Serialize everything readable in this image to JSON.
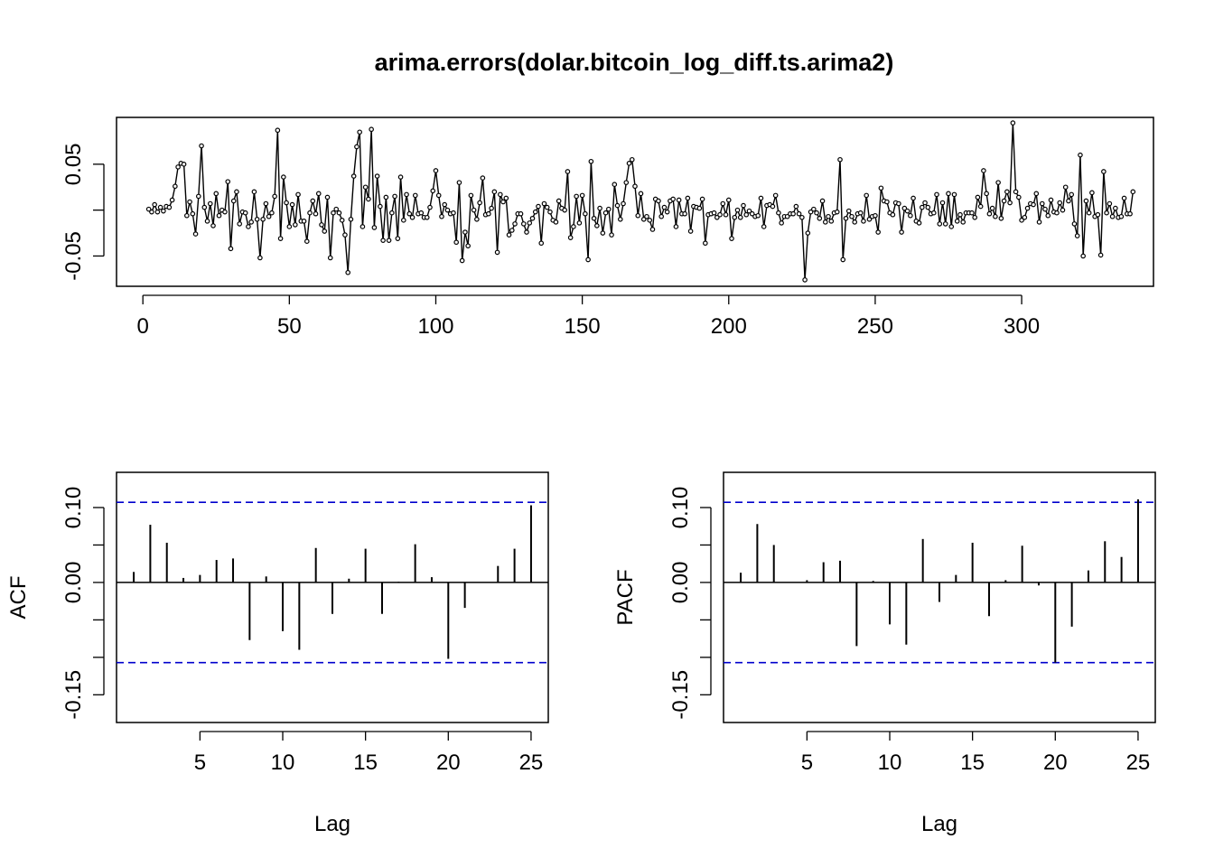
{
  "title": "arima.errors(dolar.bitcoin_log_diff.ts.arima2)",
  "chart_data": [
    {
      "type": "line",
      "panel": "time-series",
      "title": "arima.errors(dolar.bitcoin_log_diff.ts.arima2)",
      "xlabel": "",
      "ylabel": "",
      "xlim": [
        -9,
        345
      ],
      "ylim": [
        -0.083,
        0.101
      ],
      "xticks": [
        0,
        50,
        100,
        150,
        200,
        250,
        300
      ],
      "yticks": [
        -0.05,
        0.0,
        0.05
      ],
      "ytick_labels": [
        "-0.05",
        "",
        "0.05"
      ],
      "markers": "open circles",
      "x_start": 2,
      "values": [
        0.001,
        -0.002,
        0.006,
        -0.002,
        0.003,
        -0.001,
        0.004,
        0.003,
        0.011,
        0.026,
        0.047,
        0.051,
        0.05,
        -0.006,
        0.009,
        -0.004,
        -0.026,
        0.015,
        0.07,
        0.003,
        -0.012,
        0.007,
        -0.017,
        0.018,
        -0.006,
        0.0,
        -0.002,
        0.031,
        -0.042,
        0.01,
        0.02,
        -0.015,
        -0.002,
        -0.003,
        -0.018,
        -0.013,
        0.02,
        -0.01,
        -0.052,
        -0.01,
        0.007,
        -0.007,
        -0.003,
        0.015,
        0.087,
        -0.031,
        0.036,
        0.008,
        -0.018,
        0.006,
        -0.016,
        0.017,
        -0.012,
        -0.012,
        -0.034,
        -0.003,
        0.01,
        -0.004,
        0.018,
        -0.016,
        -0.023,
        0.014,
        -0.052,
        -0.003,
        0.001,
        -0.003,
        -0.011,
        -0.027,
        -0.068,
        -0.01,
        0.037,
        0.069,
        0.085,
        -0.018,
        0.025,
        0.012,
        0.088,
        -0.019,
        0.037,
        0.004,
        -0.033,
        0.014,
        -0.033,
        -0.003,
        0.015,
        -0.031,
        0.036,
        -0.011,
        0.017,
        -0.004,
        -0.008,
        0.016,
        -0.004,
        -0.003,
        -0.008,
        -0.008,
        0.003,
        0.021,
        0.043,
        0.016,
        -0.007,
        0.006,
        0.0,
        -0.004,
        -0.003,
        -0.035,
        0.03,
        -0.055,
        -0.024,
        -0.039,
        0.016,
        0.0,
        -0.01,
        0.008,
        0.035,
        -0.005,
        -0.004,
        0.002,
        0.02,
        -0.046,
        0.017,
        0.009,
        0.013,
        -0.027,
        -0.022,
        -0.015,
        -0.004,
        -0.004,
        -0.015,
        -0.024,
        -0.014,
        -0.009,
        -0.002,
        0.004,
        -0.036,
        0.007,
        0.003,
        -0.002,
        -0.011,
        -0.013,
        0.01,
        0.002,
        0.0,
        0.042,
        -0.03,
        -0.018,
        0.015,
        -0.014,
        0.016,
        -0.004,
        -0.054,
        0.053,
        -0.009,
        -0.017,
        0.002,
        -0.025,
        -0.003,
        0.001,
        -0.027,
        0.028,
        0.005,
        -0.01,
        0.007,
        0.03,
        0.051,
        0.055,
        0.026,
        -0.006,
        0.018,
        -0.01,
        -0.007,
        -0.011,
        -0.021,
        0.012,
        0.01,
        -0.007,
        0.003,
        -0.002,
        0.01,
        0.012,
        -0.018,
        0.011,
        -0.004,
        -0.004,
        0.013,
        -0.023,
        0.004,
        0.003,
        0.002,
        0.012,
        -0.036,
        -0.005,
        -0.004,
        -0.003,
        -0.008,
        -0.005,
        0.007,
        -0.005,
        0.011,
        -0.031,
        -0.008,
        0.0,
        -0.008,
        0.005,
        -0.005,
        -0.001,
        -0.004,
        -0.007,
        -0.006,
        0.013,
        -0.018,
        0.005,
        0.006,
        0.004,
        0.016,
        -0.003,
        -0.014,
        -0.007,
        -0.007,
        -0.004,
        -0.004,
        0.004,
        -0.004,
        -0.008,
        -0.076,
        -0.025,
        -0.002,
        0.001,
        -0.003,
        -0.009,
        0.01,
        -0.013,
        -0.007,
        -0.012,
        -0.003,
        -0.002,
        0.055,
        -0.054,
        -0.009,
        -0.001,
        -0.007,
        -0.013,
        -0.004,
        -0.003,
        -0.012,
        0.016,
        -0.01,
        -0.007,
        -0.006,
        -0.024,
        0.024,
        0.01,
        0.009,
        -0.003,
        -0.005,
        0.008,
        0.007,
        -0.024,
        0.002,
        -0.001,
        -0.006,
        0.013,
        -0.012,
        -0.014,
        0.003,
        0.008,
        0.003,
        -0.004,
        -0.003,
        0.017,
        -0.015,
        0.008,
        -0.015,
        0.018,
        -0.018,
        0.017,
        -0.012,
        -0.005,
        -0.013,
        -0.003,
        -0.003,
        -0.003,
        -0.008,
        0.014,
        0.004,
        0.043,
        0.018,
        -0.004,
        0.002,
        -0.007,
        0.03,
        -0.009,
        0.01,
        0.02,
        0.008,
        0.095,
        0.02,
        0.014,
        -0.011,
        -0.008,
        0.002,
        0.007,
        0.006,
        0.018,
        -0.013,
        0.007,
        0.001,
        -0.006,
        0.011,
        -0.002,
        -0.003,
        0.008,
        0.0,
        0.025,
        0.01,
        0.017,
        -0.015,
        -0.028,
        0.06,
        -0.05,
        0.01,
        -0.003,
        0.019,
        -0.007,
        -0.005,
        -0.049,
        0.042,
        -0.003,
        0.007,
        -0.007,
        0.002,
        -0.008,
        -0.007,
        0.013,
        -0.004,
        -0.004,
        0.02
      ]
    },
    {
      "type": "bar",
      "panel": "acf",
      "title": "",
      "xlabel": "Lag",
      "ylabel": "ACF",
      "xlim": [
        -0.04,
        26.04
      ],
      "ylim": [
        -0.187,
        0.147
      ],
      "xticks": [
        5,
        10,
        15,
        20,
        25
      ],
      "yticks": [
        -0.15,
        -0.1,
        -0.05,
        0.0,
        0.05,
        0.1
      ],
      "ytick_labels": [
        "-0.15",
        "",
        "",
        "0.00",
        "",
        "0.10"
      ],
      "ci": 0.107,
      "ci_color": "#0000CD",
      "x": [
        1,
        2,
        3,
        4,
        5,
        6,
        7,
        8,
        9,
        10,
        11,
        12,
        13,
        14,
        15,
        16,
        17,
        18,
        19,
        20,
        21,
        22,
        23,
        24,
        25
      ],
      "values": [
        0.014,
        0.077,
        0.053,
        0.006,
        0.01,
        0.03,
        0.032,
        -0.077,
        0.008,
        -0.065,
        -0.09,
        0.046,
        -0.042,
        0.005,
        0.045,
        -0.042,
        0.001,
        0.051,
        0.007,
        -0.102,
        -0.034,
        0.0,
        0.022,
        0.045,
        0.103
      ]
    },
    {
      "type": "bar",
      "panel": "pacf",
      "title": "",
      "xlabel": "Lag",
      "ylabel": "PACF",
      "xlim": [
        -0.04,
        26.04
      ],
      "ylim": [
        -0.187,
        0.147
      ],
      "xticks": [
        5,
        10,
        15,
        20,
        25
      ],
      "yticks": [
        -0.15,
        -0.1,
        -0.05,
        0.0,
        0.05,
        0.1
      ],
      "ytick_labels": [
        "-0.15",
        "",
        "",
        "0.00",
        "",
        "0.10"
      ],
      "ci": 0.107,
      "ci_color": "#0000CD",
      "x": [
        1,
        2,
        3,
        4,
        5,
        6,
        7,
        8,
        9,
        10,
        11,
        12,
        13,
        14,
        15,
        16,
        17,
        18,
        19,
        20,
        21,
        22,
        23,
        24,
        25
      ],
      "values": [
        0.013,
        0.078,
        0.05,
        0.0,
        0.003,
        0.027,
        0.029,
        -0.085,
        0.002,
        -0.056,
        -0.083,
        0.058,
        -0.026,
        0.01,
        0.053,
        -0.045,
        0.003,
        0.049,
        -0.004,
        -0.107,
        -0.059,
        0.016,
        0.055,
        0.034,
        0.111
      ]
    }
  ]
}
